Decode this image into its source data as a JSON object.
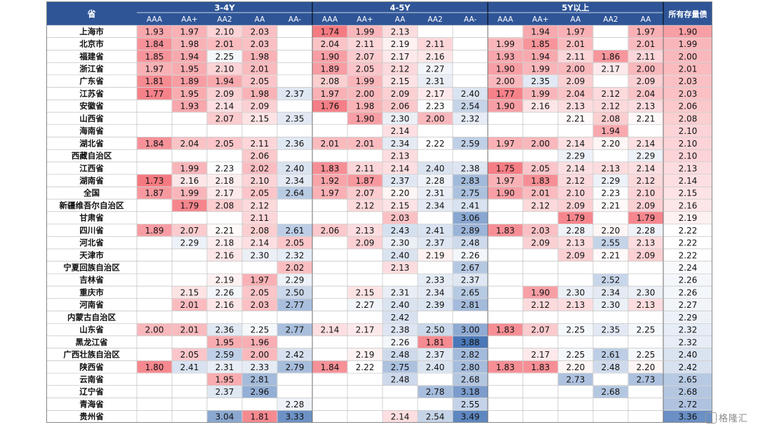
{
  "chart_data": {
    "type": "heatmap",
    "corner_label": "省",
    "groups": [
      {
        "label": "3-4Y",
        "columns": [
          "AAA",
          "AA+",
          "AA2",
          "AA",
          "AA-"
        ]
      },
      {
        "label": "4-5Y",
        "columns": [
          "AAA",
          "AA+",
          "AA",
          "AA2",
          "AA-"
        ]
      },
      {
        "label": "5Y以上",
        "columns": [
          "AAA",
          "AA+",
          "AA",
          "AA2",
          "AA"
        ]
      }
    ],
    "total_label": "所有存量债",
    "rows": [
      {
        "name": "上海市",
        "values": [
          1.93,
          1.97,
          2.1,
          2.03,
          null,
          1.74,
          1.99,
          2.13,
          null,
          null,
          null,
          1.94,
          1.97,
          null,
          1.97,
          1.9
        ]
      },
      {
        "name": "北京市",
        "values": [
          1.84,
          1.98,
          2.01,
          2.03,
          null,
          2.04,
          2.11,
          2.19,
          2.11,
          null,
          1.99,
          1.85,
          2.01,
          null,
          2.01,
          1.99
        ]
      },
      {
        "name": "福建省",
        "values": [
          1.85,
          1.94,
          2.25,
          1.98,
          null,
          1.9,
          2.07,
          2.17,
          2.16,
          null,
          1.93,
          1.94,
          2.11,
          1.86,
          2.11,
          2.0
        ]
      },
      {
        "name": "浙江省",
        "values": [
          1.97,
          1.95,
          2.1,
          2.01,
          null,
          1.89,
          2.05,
          2.12,
          2.27,
          null,
          1.9,
          1.99,
          2.0,
          2.17,
          2.0,
          2.01
        ]
      },
      {
        "name": "广东省",
        "values": [
          1.81,
          1.89,
          1.94,
          2.05,
          null,
          2.08,
          1.99,
          2.15,
          2.31,
          null,
          2.0,
          2.35,
          2.09,
          null,
          2.09,
          2.03
        ]
      },
      {
        "name": "江苏省",
        "values": [
          1.77,
          1.95,
          2.09,
          1.98,
          2.37,
          1.97,
          2.0,
          2.09,
          2.17,
          2.4,
          1.77,
          1.99,
          2.04,
          2.12,
          2.04,
          2.03
        ]
      },
      {
        "name": "安徽省",
        "values": [
          null,
          1.93,
          2.14,
          2.09,
          null,
          1.76,
          1.98,
          2.06,
          2.23,
          2.54,
          1.9,
          2.16,
          2.13,
          2.12,
          2.13,
          2.06
        ]
      },
      {
        "name": "山西省",
        "values": [
          null,
          null,
          2.07,
          2.15,
          2.35,
          null,
          1.9,
          2.3,
          2.0,
          2.32,
          null,
          null,
          2.21,
          2.08,
          2.21,
          2.08
        ]
      },
      {
        "name": "海南省",
        "values": [
          null,
          null,
          null,
          null,
          null,
          null,
          null,
          2.14,
          null,
          null,
          null,
          null,
          null,
          1.94,
          null,
          2.1
        ]
      },
      {
        "name": "湖北省",
        "values": [
          1.84,
          2.04,
          2.05,
          2.11,
          2.36,
          2.01,
          2.01,
          2.34,
          2.22,
          2.59,
          1.97,
          2.0,
          2.14,
          2.2,
          2.14,
          2.1
        ]
      },
      {
        "name": "西藏自治区",
        "values": [
          null,
          null,
          null,
          2.06,
          null,
          null,
          null,
          2.13,
          null,
          null,
          null,
          null,
          2.29,
          null,
          2.29,
          2.1
        ]
      },
      {
        "name": "江西省",
        "values": [
          null,
          1.99,
          2.23,
          2.02,
          2.4,
          1.83,
          2.11,
          2.14,
          2.4,
          2.38,
          1.75,
          2.05,
          2.14,
          2.13,
          2.14,
          2.13
        ]
      },
      {
        "name": "湖南省",
        "values": [
          1.73,
          2.16,
          2.18,
          2.1,
          2.34,
          1.92,
          1.87,
          2.37,
          2.28,
          2.83,
          1.97,
          1.83,
          2.12,
          2.29,
          2.12,
          2.14
        ]
      },
      {
        "name": "全国",
        "values": [
          1.87,
          1.99,
          2.17,
          2.05,
          2.64,
          1.97,
          2.07,
          2.2,
          2.31,
          2.75,
          1.9,
          2.01,
          2.1,
          2.23,
          2.1,
          2.15
        ]
      },
      {
        "name": "新疆维吾尔自治区",
        "values": [
          null,
          1.79,
          2.08,
          2.12,
          null,
          null,
          2.12,
          2.15,
          2.34,
          2.41,
          null,
          2.12,
          2.09,
          2.21,
          2.09,
          2.16
        ]
      },
      {
        "name": "甘肃省",
        "values": [
          null,
          null,
          null,
          2.11,
          null,
          null,
          null,
          2.03,
          null,
          3.06,
          null,
          null,
          1.79,
          null,
          1.79,
          2.19
        ]
      },
      {
        "name": "四川省",
        "values": [
          1.89,
          2.07,
          2.21,
          2.08,
          2.61,
          2.06,
          2.13,
          2.43,
          2.41,
          2.89,
          1.83,
          2.03,
          2.28,
          2.2,
          2.28,
          2.22
        ]
      },
      {
        "name": "河北省",
        "values": [
          null,
          2.29,
          2.18,
          2.14,
          2.05,
          null,
          2.09,
          2.3,
          2.37,
          2.48,
          null,
          2.09,
          2.13,
          2.55,
          2.13,
          2.22
        ]
      },
      {
        "name": "天津市",
        "values": [
          null,
          null,
          2.16,
          2.3,
          2.32,
          null,
          null,
          2.4,
          2.19,
          2.26,
          null,
          null,
          2.09,
          2.21,
          2.09,
          2.22
        ]
      },
      {
        "name": "宁夏回族自治区",
        "values": [
          null,
          null,
          null,
          null,
          2.02,
          null,
          null,
          2.13,
          null,
          2.67,
          null,
          null,
          null,
          null,
          null,
          2.24
        ]
      },
      {
        "name": "吉林省",
        "values": [
          null,
          null,
          2.19,
          1.97,
          2.29,
          null,
          null,
          null,
          2.33,
          2.37,
          null,
          null,
          null,
          2.52,
          null,
          2.26
        ]
      },
      {
        "name": "重庆市",
        "values": [
          null,
          2.15,
          2.26,
          2.05,
          2.5,
          null,
          2.15,
          2.31,
          2.34,
          2.65,
          null,
          1.9,
          2.3,
          2.34,
          2.3,
          2.26
        ]
      },
      {
        "name": "河南省",
        "values": [
          null,
          2.01,
          2.16,
          2.03,
          2.77,
          null,
          2.27,
          2.4,
          2.39,
          2.81,
          null,
          2.12,
          2.13,
          2.3,
          2.13,
          2.27
        ]
      },
      {
        "name": "内蒙古自治区",
        "values": [
          null,
          null,
          null,
          null,
          null,
          null,
          null,
          2.42,
          null,
          null,
          null,
          null,
          null,
          null,
          null,
          2.29
        ]
      },
      {
        "name": "山东省",
        "values": [
          2.0,
          2.01,
          2.36,
          2.25,
          2.77,
          2.14,
          2.17,
          2.38,
          2.5,
          3.0,
          1.83,
          2.07,
          2.25,
          2.35,
          2.25,
          2.32
        ]
      },
      {
        "name": "黑龙江省",
        "values": [
          null,
          null,
          1.95,
          1.96,
          null,
          null,
          null,
          2.26,
          1.81,
          3.88,
          null,
          null,
          null,
          null,
          null,
          2.32
        ]
      },
      {
        "name": "广西壮族自治区",
        "values": [
          null,
          2.05,
          2.59,
          2.0,
          2.42,
          null,
          2.19,
          2.48,
          2.37,
          2.82,
          null,
          2.17,
          2.25,
          2.61,
          2.25,
          2.4
        ]
      },
      {
        "name": "陕西省",
        "values": [
          1.8,
          2.41,
          2.31,
          2.33,
          2.79,
          1.84,
          2.22,
          2.75,
          2.4,
          2.8,
          1.83,
          1.83,
          2.2,
          2.48,
          2.2,
          2.42
        ]
      },
      {
        "name": "云南省",
        "values": [
          null,
          null,
          1.95,
          2.81,
          null,
          null,
          null,
          2.48,
          null,
          2.68,
          null,
          null,
          2.73,
          null,
          2.73,
          2.65
        ]
      },
      {
        "name": "辽宁省",
        "values": [
          null,
          null,
          2.37,
          2.96,
          null,
          null,
          null,
          null,
          2.78,
          3.18,
          null,
          null,
          null,
          2.68,
          null,
          2.68
        ]
      },
      {
        "name": "青海省",
        "values": [
          null,
          null,
          null,
          null,
          2.28,
          null,
          null,
          null,
          null,
          2.55,
          null,
          null,
          null,
          null,
          null,
          2.72
        ]
      },
      {
        "name": "贵州省",
        "values": [
          null,
          null,
          3.04,
          1.81,
          3.33,
          null,
          null,
          2.14,
          2.54,
          3.49,
          null,
          null,
          null,
          null,
          null,
          3.36
        ]
      }
    ],
    "colors": {
      "header_bg": "#2f5597",
      "header_text": "#ffffff",
      "low": "#f4727a",
      "mid": "#ffffff",
      "high": "#4a78b8",
      "grid": "#b4b4b4"
    }
  },
  "watermark": {
    "text": "格隆汇",
    "icon": "logo-square-icon"
  }
}
